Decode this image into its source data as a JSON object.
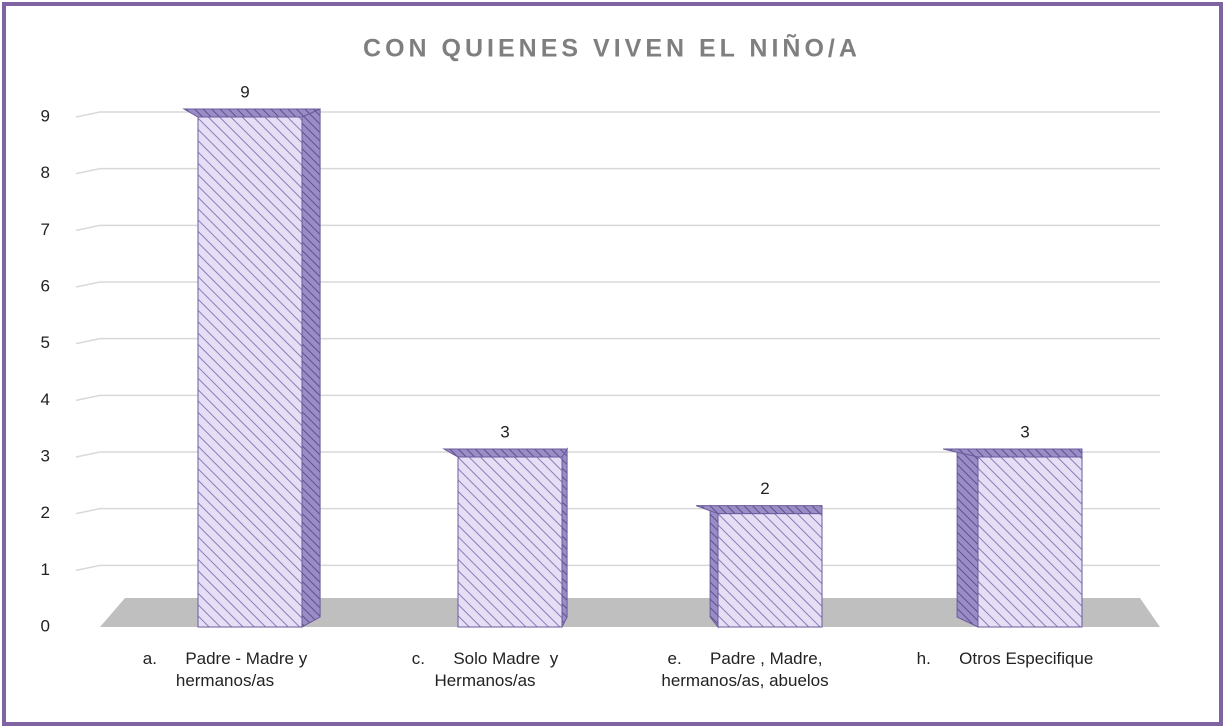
{
  "chart_data": {
    "type": "bar3d",
    "title": "CON QUIENES VIVEN EL NIÑO/A",
    "categories": [
      "a.      Padre - Madre y hermanos/as",
      "c.      Solo Madre  y Hermanos/as",
      "e.      Padre , Madre, hermanos/as, abuelos",
      "h.      Otros Especifique"
    ],
    "values": [
      9,
      3,
      2,
      3
    ],
    "color": "#e6def5",
    "ylim": [
      0,
      9
    ],
    "yticks": [
      0,
      1,
      2,
      3,
      4,
      5,
      6,
      7,
      8,
      9
    ],
    "grid": true
  }
}
